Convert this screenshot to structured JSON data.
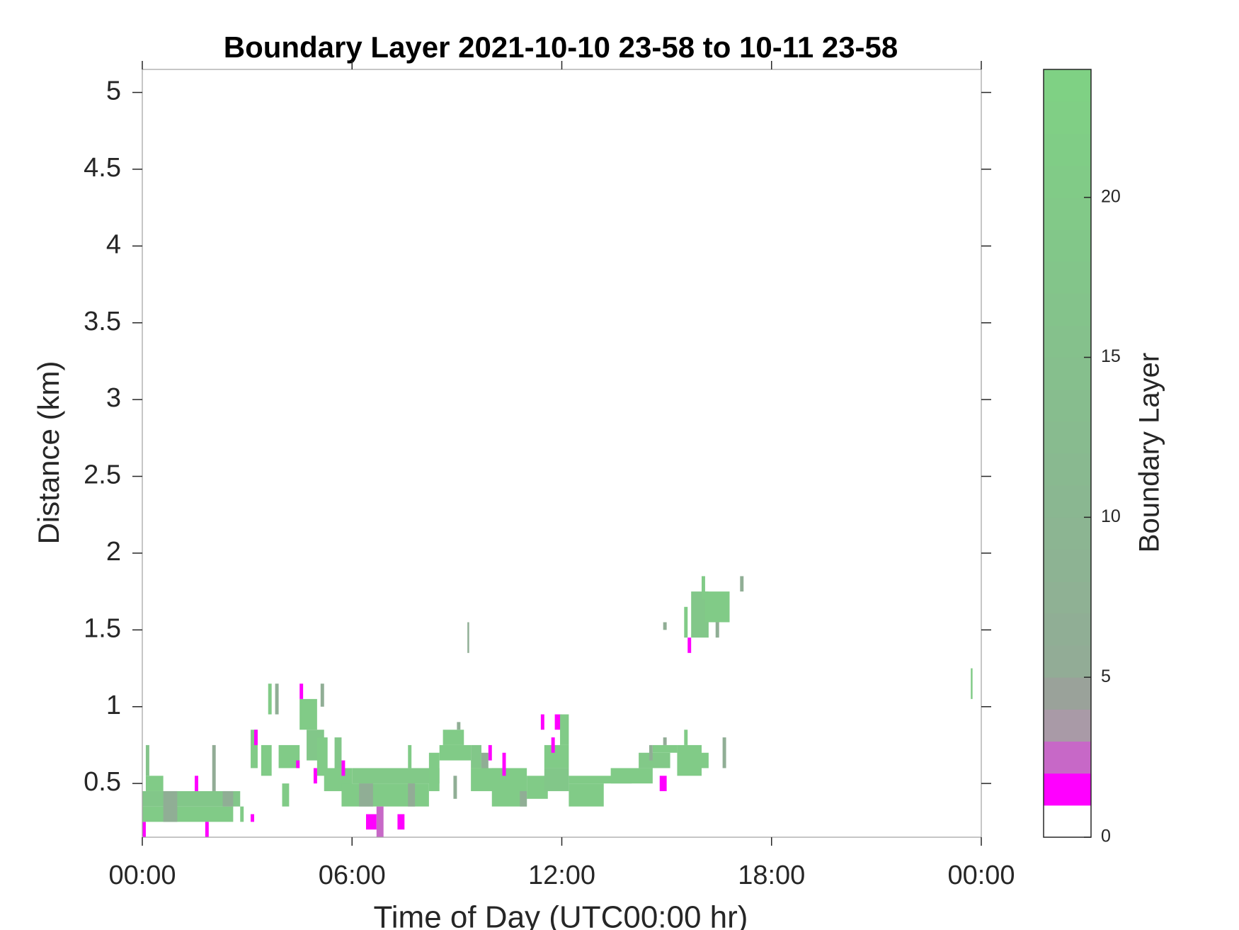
{
  "chart_data": {
    "type": "heatmap",
    "title": "Boundary Layer 2021-10-10 23-58 to 10-11 23-58",
    "x_label": "Time of Day (UTC00:00 hr)",
    "y_label": "Distance (km)",
    "colorbar_label": "Boundary Layer",
    "xlim": [
      0,
      24
    ],
    "xticks": [
      {
        "value": 0,
        "label": "00:00"
      },
      {
        "value": 6,
        "label": "06:00"
      },
      {
        "value": 12,
        "label": "12:00"
      },
      {
        "value": 18,
        "label": "18:00"
      },
      {
        "value": 24,
        "label": "00:00"
      }
    ],
    "ylim": [
      0.15,
      5.15
    ],
    "yticks": [
      0.5,
      1,
      1.5,
      2,
      2.5,
      3,
      3.5,
      4,
      4.5,
      5
    ],
    "clim": [
      0,
      24
    ],
    "cticks": [
      0,
      5,
      10,
      15,
      20
    ],
    "colormap": [
      "#ffffff",
      "#ff00ff",
      "#c768c7",
      "#a99aa7",
      "#9aa29a",
      "#92ac96",
      "#90ae95",
      "#8fb194",
      "#8db393",
      "#8cb592",
      "#8ab791",
      "#89b990",
      "#88bb8f",
      "#87bd8e",
      "#86bf8d",
      "#85c18c",
      "#84c38b",
      "#83c58a",
      "#82c789",
      "#82c988",
      "#81cb87",
      "#80cd86",
      "#80cf85",
      "#7fd184"
    ],
    "cells": [
      [
        0,
        0.1,
        0.15,
        0.25,
        1
      ],
      [
        0,
        2.6,
        0.25,
        0.35,
        20
      ],
      [
        0,
        2.8,
        0.35,
        0.45,
        18
      ],
      [
        0.1,
        0.6,
        0.45,
        0.55,
        20
      ],
      [
        0.1,
        0.2,
        0.55,
        0.75,
        16
      ],
      [
        0.6,
        1.0,
        0.25,
        0.45,
        6
      ],
      [
        1.5,
        1.6,
        0.45,
        0.55,
        1
      ],
      [
        1.8,
        1.9,
        0.15,
        0.25,
        1
      ],
      [
        2.0,
        2.1,
        0.45,
        0.75,
        5
      ],
      [
        2.3,
        2.6,
        0.35,
        0.45,
        6
      ],
      [
        2.8,
        2.9,
        0.25,
        0.35,
        20
      ],
      [
        3.1,
        3.2,
        0.25,
        0.3,
        1
      ],
      [
        3.1,
        3.3,
        0.6,
        0.85,
        20
      ],
      [
        3.2,
        3.3,
        0.75,
        0.85,
        1
      ],
      [
        3.4,
        3.7,
        0.55,
        0.75,
        20
      ],
      [
        3.6,
        3.7,
        0.95,
        1.15,
        20
      ],
      [
        3.8,
        3.9,
        0.95,
        1.15,
        6
      ],
      [
        3.9,
        4.5,
        0.6,
        0.75,
        20
      ],
      [
        4.4,
        4.5,
        0.6,
        0.65,
        1
      ],
      [
        4.5,
        5.0,
        0.85,
        1.05,
        20
      ],
      [
        4.5,
        4.6,
        1.05,
        1.15,
        1
      ],
      [
        4.7,
        5.2,
        0.65,
        0.85,
        18
      ],
      [
        5.0,
        5.3,
        0.55,
        0.8,
        20
      ],
      [
        5.1,
        5.2,
        1.0,
        1.15,
        6
      ],
      [
        4.0,
        4.2,
        0.35,
        0.5,
        20
      ],
      [
        4.9,
        5.0,
        0.5,
        0.6,
        1
      ],
      [
        5.5,
        5.7,
        0.5,
        0.8,
        18
      ],
      [
        5.2,
        6.0,
        0.45,
        0.6,
        20
      ],
      [
        5.7,
        5.8,
        0.55,
        0.65,
        1
      ],
      [
        5.7,
        8.2,
        0.35,
        0.5,
        20
      ],
      [
        6.0,
        8.5,
        0.5,
        0.6,
        19
      ],
      [
        6.4,
        6.7,
        0.2,
        0.3,
        1
      ],
      [
        6.7,
        6.9,
        0.15,
        0.35,
        2
      ],
      [
        7.3,
        7.5,
        0.2,
        0.3,
        1
      ],
      [
        6.2,
        6.6,
        0.35,
        0.5,
        6
      ],
      [
        7.6,
        7.8,
        0.35,
        0.5,
        5
      ],
      [
        7.6,
        7.7,
        0.6,
        0.75,
        20
      ],
      [
        8.2,
        8.5,
        0.45,
        0.7,
        20
      ],
      [
        8.5,
        9.4,
        0.65,
        0.75,
        20
      ],
      [
        8.6,
        9.2,
        0.75,
        0.85,
        20
      ],
      [
        9.0,
        9.1,
        0.85,
        0.9,
        6
      ],
      [
        8.9,
        9.0,
        0.4,
        0.55,
        6
      ],
      [
        9.3,
        9.35,
        1.35,
        1.55,
        6
      ],
      [
        9.4,
        9.7,
        0.6,
        0.75,
        18
      ],
      [
        9.7,
        9.9,
        0.55,
        0.7,
        6
      ],
      [
        9.9,
        10.0,
        0.65,
        0.75,
        1
      ],
      [
        9.4,
        10.3,
        0.45,
        0.6,
        20
      ],
      [
        10.0,
        11.0,
        0.35,
        0.6,
        20
      ],
      [
        10.3,
        10.4,
        0.55,
        0.7,
        1
      ],
      [
        10.8,
        11.0,
        0.35,
        0.45,
        6
      ],
      [
        11.0,
        11.6,
        0.4,
        0.55,
        20
      ],
      [
        11.4,
        11.5,
        0.85,
        0.95,
        1
      ],
      [
        11.5,
        12.2,
        0.6,
        0.75,
        20
      ],
      [
        11.5,
        12.2,
        0.45,
        0.6,
        18
      ],
      [
        11.8,
        12.0,
        0.85,
        0.95,
        1
      ],
      [
        11.95,
        12.2,
        0.75,
        0.95,
        20
      ],
      [
        11.7,
        11.8,
        0.7,
        0.8,
        1
      ],
      [
        12.2,
        13.2,
        0.35,
        0.5,
        20
      ],
      [
        12.2,
        14.0,
        0.5,
        0.55,
        20
      ],
      [
        13.4,
        14.6,
        0.5,
        0.6,
        20
      ],
      [
        14.2,
        15.1,
        0.6,
        0.7,
        19
      ],
      [
        14.8,
        15.0,
        0.45,
        0.55,
        1
      ],
      [
        14.6,
        15.3,
        0.7,
        0.75,
        20
      ],
      [
        15.3,
        16.0,
        0.55,
        0.75,
        20
      ],
      [
        14.5,
        14.6,
        0.65,
        0.75,
        6
      ],
      [
        14.9,
        15.0,
        0.75,
        0.8,
        5
      ],
      [
        16.0,
        16.2,
        0.6,
        0.7,
        20
      ],
      [
        16.6,
        16.7,
        0.6,
        0.8,
        6
      ],
      [
        15.5,
        15.6,
        0.75,
        0.85,
        20
      ],
      [
        14.9,
        15.0,
        1.5,
        1.55,
        6
      ],
      [
        15.5,
        15.6,
        1.45,
        1.65,
        20
      ],
      [
        15.6,
        15.7,
        1.35,
        1.45,
        1
      ],
      [
        15.7,
        16.2,
        1.45,
        1.75,
        18
      ],
      [
        16.1,
        16.8,
        1.55,
        1.75,
        20
      ],
      [
        16.0,
        16.1,
        1.7,
        1.85,
        20
      ],
      [
        16.4,
        16.5,
        1.45,
        1.55,
        6
      ],
      [
        17.1,
        17.2,
        1.75,
        1.85,
        6
      ],
      [
        23.7,
        23.75,
        1.05,
        1.25,
        20
      ]
    ]
  }
}
